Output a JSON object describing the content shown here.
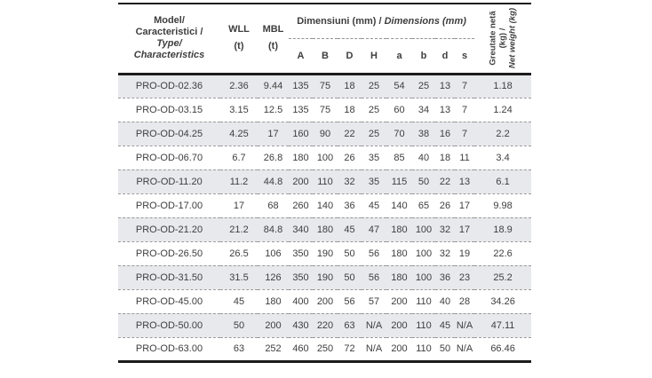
{
  "table": {
    "header": {
      "model_lines": [
        "Model/",
        "Caracteristici /",
        "Type/",
        "Characteristics"
      ],
      "wll_label": "WLL",
      "wll_unit": "(t)",
      "mbl_label": "MBL",
      "mbl_unit": "(t)",
      "dimensions_ro": "Dimensiuni (mm)",
      "dimensions_sep": " / ",
      "dimensions_en": "Dimensions (mm)",
      "dim_columns": [
        "A",
        "B",
        "D",
        "H",
        "a",
        "b",
        "d",
        "s"
      ],
      "weight_lines": [
        "Greutate netă",
        "(kg) /",
        "Net weight (kg)"
      ]
    },
    "rows": [
      {
        "model": "PRO-OD-02.36",
        "wll": "2.36",
        "mbl": "9.44",
        "dims": [
          "135",
          "75",
          "18",
          "25",
          "54",
          "25",
          "13",
          "7"
        ],
        "weight": "1.18"
      },
      {
        "model": "PRO-OD-03.15",
        "wll": "3.15",
        "mbl": "12.5",
        "dims": [
          "135",
          "75",
          "18",
          "25",
          "60",
          "34",
          "13",
          "7"
        ],
        "weight": "1.24"
      },
      {
        "model": "PRO-OD-04.25",
        "wll": "4.25",
        "mbl": "17",
        "dims": [
          "160",
          "90",
          "22",
          "25",
          "70",
          "38",
          "16",
          "7"
        ],
        "weight": "2.2"
      },
      {
        "model": "PRO-OD-06.70",
        "wll": "6.7",
        "mbl": "26.8",
        "dims": [
          "180",
          "100",
          "26",
          "35",
          "85",
          "40",
          "18",
          "11"
        ],
        "weight": "3.4"
      },
      {
        "model": "PRO-OD-11.20",
        "wll": "11.2",
        "mbl": "44.8",
        "dims": [
          "200",
          "110",
          "32",
          "35",
          "115",
          "50",
          "22",
          "13"
        ],
        "weight": "6.1"
      },
      {
        "model": "PRO-OD-17.00",
        "wll": "17",
        "mbl": "68",
        "dims": [
          "260",
          "140",
          "36",
          "45",
          "140",
          "65",
          "26",
          "17"
        ],
        "weight": "9.98"
      },
      {
        "model": "PRO-OD-21.20",
        "wll": "21.2",
        "mbl": "84.8",
        "dims": [
          "340",
          "180",
          "45",
          "47",
          "180",
          "100",
          "32",
          "17"
        ],
        "weight": "18.9"
      },
      {
        "model": "PRO-OD-26.50",
        "wll": "26.5",
        "mbl": "106",
        "dims": [
          "350",
          "190",
          "50",
          "56",
          "180",
          "100",
          "32",
          "19"
        ],
        "weight": "22.6"
      },
      {
        "model": "PRO-OD-31.50",
        "wll": "31.5",
        "mbl": "126",
        "dims": [
          "350",
          "190",
          "50",
          "56",
          "180",
          "100",
          "36",
          "23"
        ],
        "weight": "25.2"
      },
      {
        "model": "PRO-OD-45.00",
        "wll": "45",
        "mbl": "180",
        "dims": [
          "400",
          "200",
          "56",
          "57",
          "200",
          "110",
          "40",
          "28"
        ],
        "weight": "34.26"
      },
      {
        "model": "PRO-OD-50.00",
        "wll": "50",
        "mbl": "200",
        "dims": [
          "430",
          "220",
          "63",
          "N/A",
          "200",
          "110",
          "45",
          "N/A"
        ],
        "weight": "47.11"
      },
      {
        "model": "PRO-OD-63.00",
        "wll": "63",
        "mbl": "252",
        "dims": [
          "460",
          "250",
          "72",
          "N/A",
          "200",
          "110",
          "50",
          "N/A"
        ],
        "weight": "66.46"
      }
    ]
  },
  "colors": {
    "row_shade": "#e8e9ed",
    "border": "#1c1c1c",
    "dashed_separator": "#9a9a9a",
    "text": "#3e3e3e"
  }
}
